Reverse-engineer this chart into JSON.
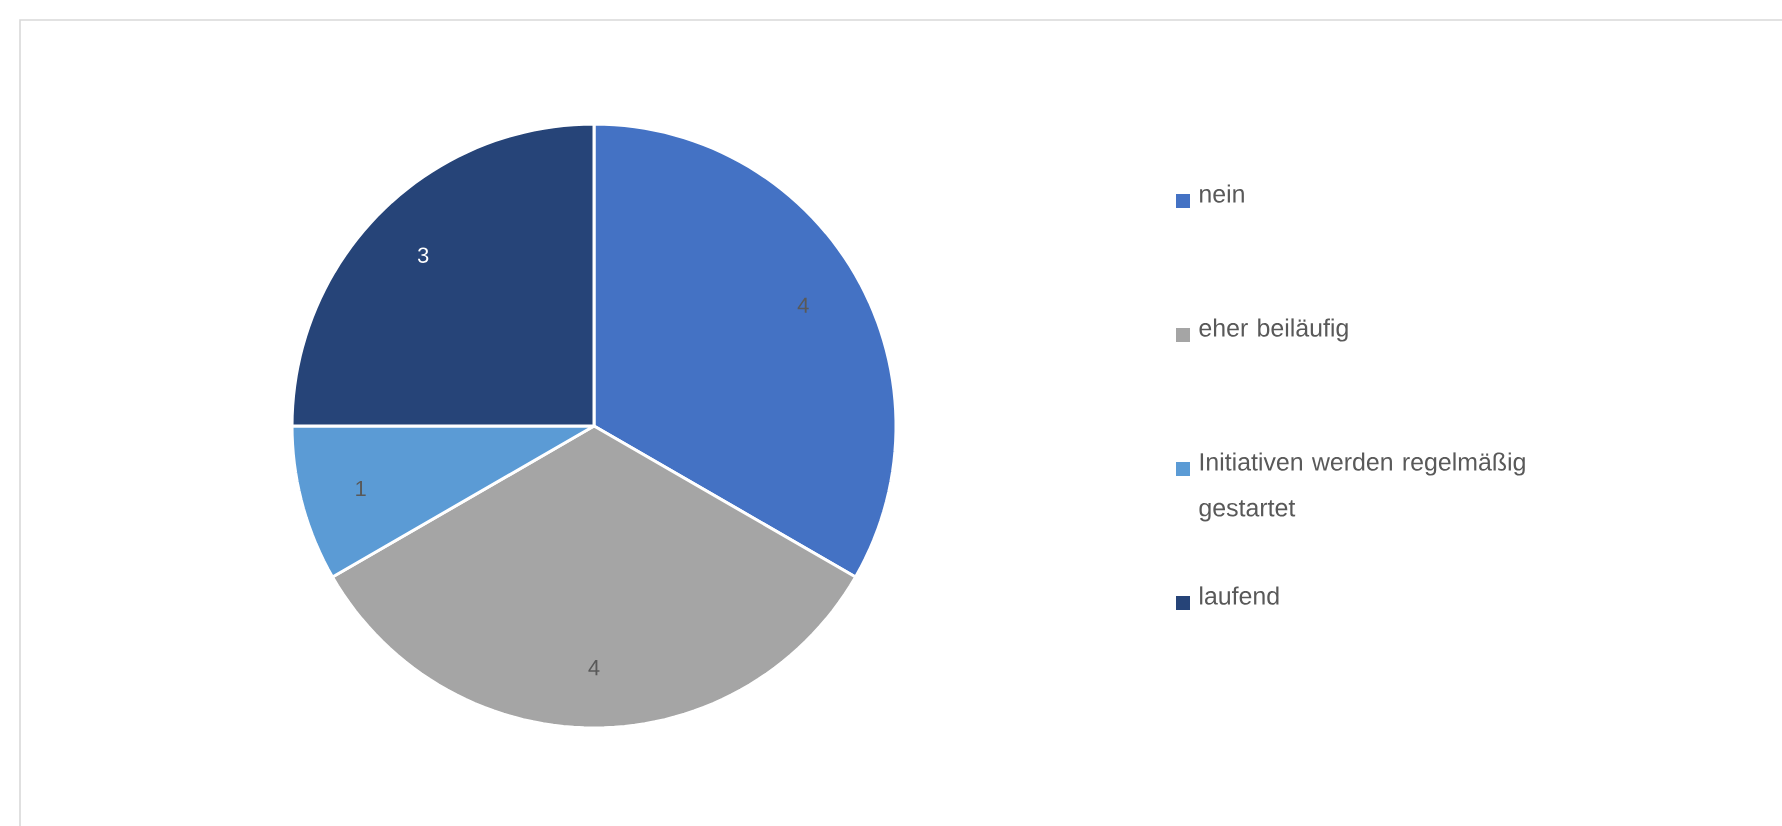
{
  "chart_data": {
    "type": "pie",
    "categories": [
      "nein",
      "eher beiläufig",
      "Initiativen werden regelmäßig gestartet",
      "laufend"
    ],
    "values": [
      4,
      4,
      1,
      3
    ],
    "colors": [
      "#4472c4",
      "#a5a5a5",
      "#5b9bd5",
      "#264478"
    ],
    "data_labels": true,
    "legend": "right"
  }
}
